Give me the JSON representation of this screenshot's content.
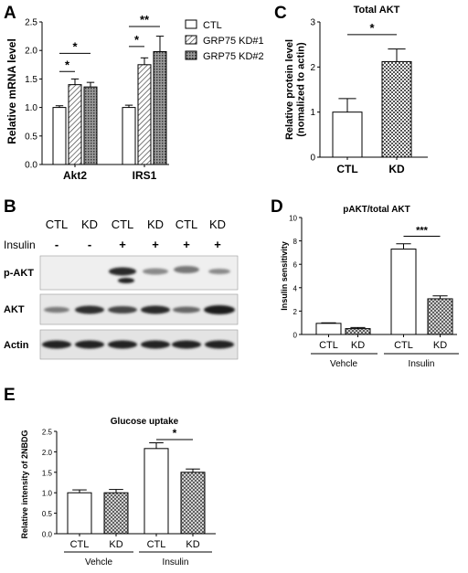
{
  "panels": {
    "A": {
      "letter": "A",
      "chart_data": {
        "type": "bar",
        "categories": [
          "Akt2",
          "IRS1"
        ],
        "series": [
          {
            "name": "CTL",
            "values": [
              1.0,
              1.0
            ],
            "errors": [
              0.03,
              0.04
            ],
            "pattern": "open"
          },
          {
            "name": "GRP75 KD#1",
            "values": [
              1.4,
              1.75
            ],
            "errors": [
              0.1,
              0.12
            ],
            "pattern": "hatch"
          },
          {
            "name": "GRP75 KD#2",
            "values": [
              1.36,
              1.98
            ],
            "errors": [
              0.08,
              0.27
            ],
            "pattern": "dots"
          }
        ],
        "ylabel": "Relative mRNA level",
        "ylim": [
          0,
          2.5
        ],
        "yticks": [
          "0.0",
          "0.5",
          "1.0",
          "1.5",
          "2.0",
          "2.5"
        ],
        "significance": [
          {
            "group": "Akt2",
            "from": "CTL",
            "to": "GRP75 KD#1",
            "label": "*"
          },
          {
            "group": "Akt2",
            "from": "CTL",
            "to": "GRP75 KD#2",
            "label": "*"
          },
          {
            "group": "IRS1",
            "from": "CTL",
            "to": "GRP75 KD#1",
            "label": "*"
          },
          {
            "group": "IRS1",
            "from": "CTL",
            "to": "GRP75 KD#2",
            "label": "**"
          }
        ]
      }
    },
    "B": {
      "letter": "B",
      "lanes": [
        "CTL",
        "KD",
        "CTL",
        "KD",
        "CTL",
        "KD"
      ],
      "insulin_label": "Insulin",
      "insulin": [
        "-",
        "-",
        "+",
        "+",
        "+",
        "+"
      ],
      "blots": [
        "p-AKT",
        "AKT",
        "Actin"
      ]
    },
    "C": {
      "letter": "C",
      "chart_data": {
        "type": "bar",
        "title": "Total AKT",
        "categories": [
          "CTL",
          "KD"
        ],
        "values": [
          1.0,
          2.12
        ],
        "errors": [
          0.3,
          0.28
        ],
        "ylabel": "Relative protein level\n(nomalized to actin)",
        "ylim": [
          0,
          3
        ],
        "yticks": [
          "0",
          "1",
          "2",
          "3"
        ],
        "significance": [
          {
            "from": "CTL",
            "to": "KD",
            "label": "*"
          }
        ]
      }
    },
    "D": {
      "letter": "D",
      "chart_data": {
        "type": "bar",
        "title": "pAKT/total AKT",
        "categories": [
          "CTL",
          "KD",
          "CTL",
          "KD"
        ],
        "groups": [
          "Vehcle",
          "Insulin"
        ],
        "values": [
          0.95,
          0.5,
          7.3,
          3.05
        ],
        "errors": [
          0.05,
          0.1,
          0.45,
          0.25
        ],
        "ylabel": "Insulin sensitivity",
        "ylim": [
          0,
          10
        ],
        "yticks": [
          "0",
          "2",
          "4",
          "6",
          "8",
          "10"
        ],
        "significance": [
          {
            "from": 2,
            "to": 3,
            "label": "***"
          }
        ]
      }
    },
    "E": {
      "letter": "E",
      "chart_data": {
        "type": "bar",
        "title": "Glucose uptake",
        "categories": [
          "CTL",
          "KD",
          "CTL",
          "KD"
        ],
        "groups": [
          "Vehcle",
          "Insulin"
        ],
        "values": [
          1.0,
          1.0,
          2.08,
          1.5
        ],
        "errors": [
          0.07,
          0.08,
          0.14,
          0.08
        ],
        "ylabel": "Relative intensity of 2NBDG",
        "ylim": [
          0,
          2.5
        ],
        "yticks": [
          "0.0",
          "0.5",
          "1.0",
          "1.5",
          "2.0",
          "2.5"
        ],
        "significance": [
          {
            "from": 2,
            "to": 3,
            "label": "*"
          }
        ]
      }
    }
  }
}
